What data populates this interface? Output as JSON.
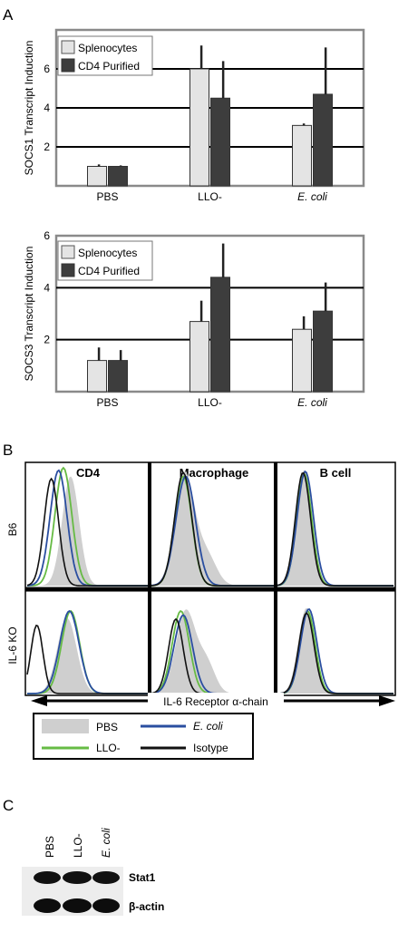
{
  "panels": {
    "a": "A",
    "b": "B",
    "c": "C"
  },
  "colors": {
    "splenocytes": "#e4e4e4",
    "cd4_purified": "#3d3d3d",
    "pbs_fill": "#cfcfcf",
    "llo": "#66bb44",
    "ecoli": "#2a4ea0",
    "isotype": "#111111"
  },
  "chart_data": [
    {
      "type": "bar",
      "ylabel": "SOCS1 Transcript Induction",
      "categories": [
        "PBS",
        "LLO-",
        "E. coli"
      ],
      "ylim": [
        0,
        8
      ],
      "yticks": [
        "2",
        "4",
        "6"
      ],
      "grid": true,
      "legend_position": "top-left",
      "series": [
        {
          "name": "Splenocytes",
          "values": [
            1.0,
            6.0,
            3.1
          ],
          "errors": [
            0.1,
            1.2,
            0.1
          ]
        },
        {
          "name": "CD4 Purified",
          "values": [
            1.0,
            4.5,
            4.7
          ],
          "errors": [
            0.05,
            1.9,
            2.4
          ]
        }
      ]
    },
    {
      "type": "bar",
      "ylabel": "SOCS3 Transcript Induction",
      "categories": [
        "PBS",
        "LLO-",
        "E. coli"
      ],
      "ylim": [
        0,
        6
      ],
      "yticks": [
        "2",
        "4",
        "6"
      ],
      "grid": true,
      "legend_position": "top-left",
      "series": [
        {
          "name": "Splenocytes",
          "values": [
            1.2,
            2.7,
            2.4
          ],
          "errors": [
            0.5,
            0.8,
            0.5
          ]
        },
        {
          "name": "CD4 Purified",
          "values": [
            1.2,
            4.4,
            3.1
          ],
          "errors": [
            0.4,
            1.3,
            1.1
          ]
        }
      ]
    }
  ],
  "flow": {
    "columns": [
      "CD4",
      "Macrophage",
      "B cell"
    ],
    "rows": [
      "B6",
      "IL-6 KO"
    ],
    "axis_label": "IL-6 Receptor α-chain",
    "legend": [
      "PBS",
      "LLO-",
      "E. coli",
      "Isotype"
    ]
  },
  "blot": {
    "lanes": [
      "PBS",
      "LLO-",
      "E. coli"
    ],
    "bands": [
      "Stat1",
      "β-actin"
    ]
  }
}
